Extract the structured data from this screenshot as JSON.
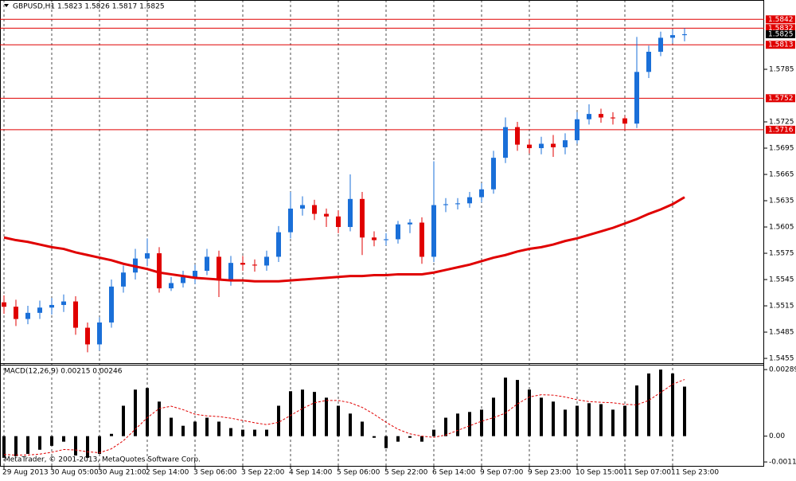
{
  "chart_data": [
    {
      "type": "candlestick",
      "title": "GBPUSD,H1  1.5823 1.5826 1.5817 1.5825",
      "up_color": "#1a6fd8",
      "down_color": "#e00000",
      "open": [
        1.5519,
        1.5514,
        1.55,
        1.5507,
        1.5513,
        1.5516,
        1.552,
        1.549,
        1.5471,
        1.5496,
        1.5537,
        1.5553,
        1.5569,
        1.5575,
        1.5535,
        1.5541,
        1.5548,
        1.5555,
        1.5571,
        1.5544,
        1.5564,
        1.5562,
        1.5561,
        1.5571,
        1.5599,
        1.5626,
        1.563,
        1.562,
        1.5617,
        1.5605,
        1.5637,
        1.5593,
        1.559,
        1.5591,
        1.5608,
        1.561,
        1.5571,
        1.563,
        1.5631,
        1.5632,
        1.5639,
        1.5648,
        1.5684,
        1.5719,
        1.5699,
        1.5695,
        1.57,
        1.5696,
        1.5704,
        1.5728,
        1.5734,
        1.573,
        1.5729,
        1.5723,
        1.5782,
        1.5805,
        1.5821,
        1.5824
      ],
      "high": [
        1.5527,
        1.5522,
        1.5515,
        1.5521,
        1.5524,
        1.5528,
        1.5526,
        1.5496,
        1.5502,
        1.5545,
        1.5561,
        1.558,
        1.5592,
        1.5582,
        1.5548,
        1.5555,
        1.5562,
        1.558,
        1.5578,
        1.5572,
        1.5572,
        1.5568,
        1.5578,
        1.5606,
        1.5645,
        1.564,
        1.5636,
        1.5626,
        1.5624,
        1.5665,
        1.5645,
        1.56,
        1.5598,
        1.5612,
        1.5614,
        1.5616,
        1.568,
        1.5638,
        1.5638,
        1.5645,
        1.5655,
        1.5692,
        1.573,
        1.5725,
        1.5705,
        1.5708,
        1.571,
        1.5712,
        1.5736,
        1.5745,
        1.574,
        1.5736,
        1.5732,
        1.5822,
        1.5812,
        1.5828,
        1.583,
        1.5832
      ],
      "low": [
        1.5506,
        1.5492,
        1.5494,
        1.55,
        1.5505,
        1.5508,
        1.5482,
        1.5462,
        1.5464,
        1.549,
        1.553,
        1.5545,
        1.556,
        1.553,
        1.5532,
        1.5536,
        1.554,
        1.555,
        1.5525,
        1.5538,
        1.5555,
        1.5554,
        1.5555,
        1.5565,
        1.5592,
        1.5618,
        1.5613,
        1.5605,
        1.5598,
        1.56,
        1.5573,
        1.5583,
        1.5584,
        1.5586,
        1.5598,
        1.5563,
        1.5565,
        1.5622,
        1.5625,
        1.5627,
        1.5633,
        1.5643,
        1.5678,
        1.5692,
        1.5689,
        1.5688,
        1.5685,
        1.5688,
        1.57,
        1.5722,
        1.5724,
        1.5722,
        1.5715,
        1.5718,
        1.5775,
        1.58,
        1.5815,
        1.5817
      ],
      "close": [
        1.5514,
        1.55,
        1.5507,
        1.5513,
        1.5516,
        1.552,
        1.549,
        1.5471,
        1.5496,
        1.5537,
        1.5553,
        1.5569,
        1.5575,
        1.5535,
        1.5541,
        1.5548,
        1.5555,
        1.5571,
        1.5544,
        1.5564,
        1.5562,
        1.5561,
        1.5571,
        1.5599,
        1.5626,
        1.563,
        1.562,
        1.5617,
        1.5605,
        1.5637,
        1.5593,
        1.559,
        1.5591,
        1.5608,
        1.561,
        1.5571,
        1.563,
        1.5631,
        1.5632,
        1.5639,
        1.5648,
        1.5684,
        1.5719,
        1.5699,
        1.5695,
        1.57,
        1.5696,
        1.5704,
        1.5728,
        1.5734,
        1.573,
        1.5729,
        1.5723,
        1.5782,
        1.5805,
        1.5821,
        1.5824,
        1.5825
      ],
      "ma": {
        "color": "#e00000",
        "values": [
          1.5593,
          1.559,
          1.5588,
          1.5585,
          1.5582,
          1.558,
          1.5576,
          1.5573,
          1.557,
          1.5567,
          1.5563,
          1.556,
          1.5557,
          1.5553,
          1.5551,
          1.5549,
          1.5547,
          1.5546,
          1.5545,
          1.5544,
          1.5544,
          1.5543,
          1.5543,
          1.5543,
          1.5544,
          1.5545,
          1.5546,
          1.5547,
          1.5548,
          1.5549,
          1.5549,
          1.555,
          1.555,
          1.5551,
          1.5551,
          1.5551,
          1.5553,
          1.5556,
          1.5559,
          1.5562,
          1.5566,
          1.557,
          1.5573,
          1.5577,
          1.558,
          1.5582,
          1.5585,
          1.5589,
          1.5592,
          1.5596,
          1.56,
          1.5604,
          1.5609,
          1.5614,
          1.562,
          1.5625,
          1.5631,
          1.5639
        ]
      },
      "ylim": [
        1.54505,
        1.58641
      ],
      "yticks": [
        1.5455,
        1.5485,
        1.5515,
        1.5545,
        1.5575,
        1.5605,
        1.5635,
        1.5665,
        1.5695,
        1.5725,
        1.5785
      ],
      "levels": [
        1.5842,
        1.5832,
        1.5813,
        1.5752,
        1.5716
      ],
      "level_color": "#e00000",
      "current_price": 1.5825,
      "xticks": [
        {
          "value": 0,
          "label": "29 Aug 2013"
        },
        {
          "value": 4,
          "label": "30 Aug 05:00"
        },
        {
          "value": 8,
          "label": "30 Aug 21:00"
        },
        {
          "value": 12,
          "label": "2 Sep 14:00"
        },
        {
          "value": 16,
          "label": "3 Sep 06:00"
        },
        {
          "value": 20,
          "label": "3 Sep 22:00"
        },
        {
          "value": 24,
          "label": "4 Sep 14:00"
        },
        {
          "value": 28,
          "label": "5 Sep 06:00"
        },
        {
          "value": 32,
          "label": "5 Sep 22:00"
        },
        {
          "value": 36,
          "label": "6 Sep 14:00"
        },
        {
          "value": 40,
          "label": "9 Sep 07:00"
        },
        {
          "value": 44,
          "label": "9 Sep 23:00"
        },
        {
          "value": 48,
          "label": "10 Sep 15:00"
        },
        {
          "value": 52,
          "label": "11 Sep 07:00"
        },
        {
          "value": 56,
          "label": "11 Sep 23:00"
        }
      ],
      "grid": true
    },
    {
      "type": "macd",
      "title": "MACD(12,26,9) 0.00215 0.00246",
      "watermark": "MetaTrader, © 2001-2013, MetaQuotes Software Corp.",
      "color": "#000000",
      "values": [
        -0.00094,
        -0.00087,
        -0.00077,
        -0.00059,
        -0.00042,
        -0.00024,
        -0.00084,
        -0.00094,
        -0.00077,
        0.0001,
        0.00132,
        0.00202,
        0.00209,
        0.0015,
        0.0008,
        0.00045,
        0.00063,
        0.0008,
        0.00063,
        0.00035,
        0.00028,
        0.00028,
        0.00028,
        0.00132,
        0.00195,
        0.00202,
        0.00192,
        0.00167,
        0.00132,
        0.00098,
        0.00063,
        -7e-05,
        -0.00052,
        -0.00024,
        -7e-05,
        -0.00024,
        0.00028,
        0.0008,
        0.00098,
        0.00105,
        0.00115,
        0.00167,
        0.00254,
        0.00244,
        0.00202,
        0.00167,
        0.0015,
        0.00115,
        0.00132,
        0.00143,
        0.00139,
        0.00115,
        0.00132,
        0.0022,
        0.00272,
        0.00289,
        0.00272,
        0.00215
      ],
      "signal": {
        "color": "#e00000",
        "values": [
          -0.0008,
          -0.00082,
          -0.00082,
          -0.00078,
          -0.0007,
          -0.00058,
          -0.0006,
          -0.00068,
          -0.00072,
          -0.00055,
          -0.0002,
          0.0003,
          0.0008,
          0.0012,
          0.0013,
          0.00115,
          0.00095,
          0.00088,
          0.00085,
          0.00078,
          0.00068,
          0.00058,
          0.0005,
          0.0006,
          0.0009,
          0.0012,
          0.00145,
          0.00155,
          0.00155,
          0.00145,
          0.00125,
          0.00095,
          0.0006,
          0.0003,
          0.0001,
          0,
          -5e-05,
          5e-05,
          0.00025,
          0.00045,
          0.00065,
          0.0008,
          0.001,
          0.0014,
          0.0017,
          0.0018,
          0.00178,
          0.0017,
          0.00158,
          0.0015,
          0.00147,
          0.00145,
          0.00138,
          0.00136,
          0.00155,
          0.0019,
          0.00225,
          0.00246
        ]
      },
      "ylim": [
        -0.00129,
        0.0031
      ],
      "yticks": [
        0.00289,
        {
          "value": 0,
          "label": "0.00"
        },
        -0.00112
      ]
    }
  ]
}
